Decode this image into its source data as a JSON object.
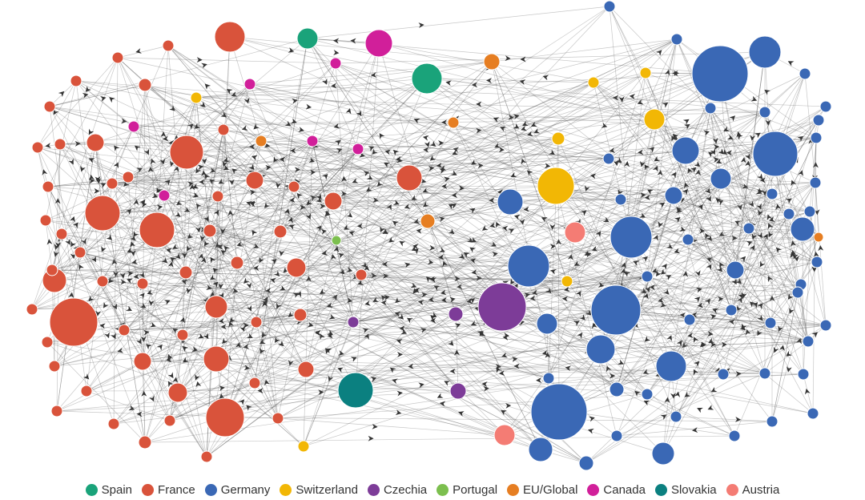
{
  "legend": [
    {
      "name": "Spain",
      "color": "#1aa37a"
    },
    {
      "name": "France",
      "color": "#d9533b"
    },
    {
      "name": "Germany",
      "color": "#3a68b5"
    },
    {
      "name": "Switzerland",
      "color": "#f2b705"
    },
    {
      "name": "Czechia",
      "color": "#7d3c98"
    },
    {
      "name": "Portugal",
      "color": "#7cbf4e"
    },
    {
      "name": "EU/Global",
      "color": "#e67e22"
    },
    {
      "name": "Canada",
      "color": "#d11f9a"
    },
    {
      "name": "Slovakia",
      "color": "#0b8080"
    },
    {
      "name": "Austria",
      "color": "#f47c74"
    }
  ]
}
